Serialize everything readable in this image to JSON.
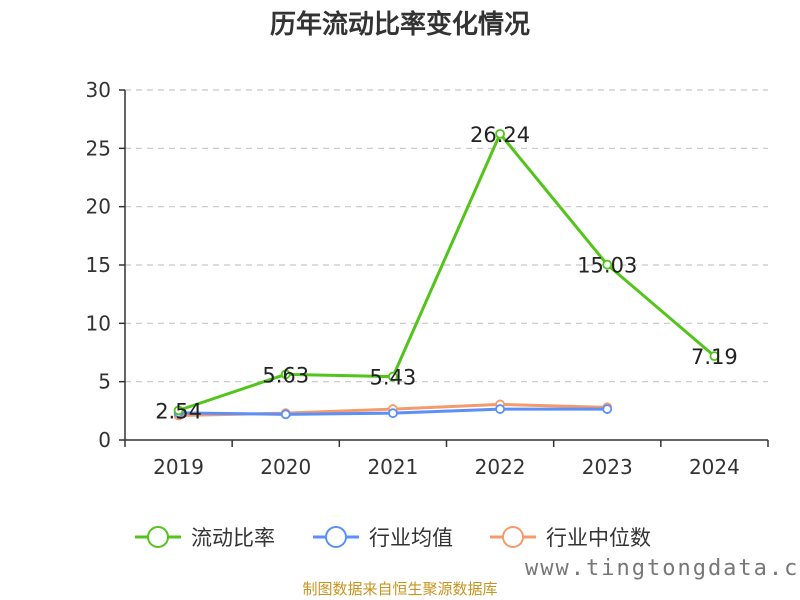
{
  "chart_data": {
    "type": "line",
    "title": "历年流动比率变化情况",
    "categories": [
      "2019",
      "2020",
      "2021",
      "2022",
      "2023",
      "2024"
    ],
    "ylim": [
      0,
      30
    ],
    "yticks": [
      0,
      5,
      10,
      15,
      20,
      25,
      30
    ],
    "grid": true,
    "legend_position": "bottom",
    "series": [
      {
        "name": "流动比率",
        "color": "#52c41a",
        "values": [
          2.54,
          5.63,
          5.43,
          26.24,
          15.03,
          7.19
        ],
        "show_labels": true
      },
      {
        "name": "行业均值",
        "color": "#5b8ff9",
        "values": [
          2.33,
          2.2,
          2.3,
          2.65,
          2.65,
          null
        ],
        "show_labels": false
      },
      {
        "name": "行业中位数",
        "color": "#f59a6b",
        "values": [
          2.1,
          2.3,
          2.65,
          3.05,
          2.8,
          null
        ],
        "show_labels": false
      }
    ]
  },
  "source_text": "制图数据来自恒生聚源数据库",
  "watermark": "www.tingtongdata.com"
}
